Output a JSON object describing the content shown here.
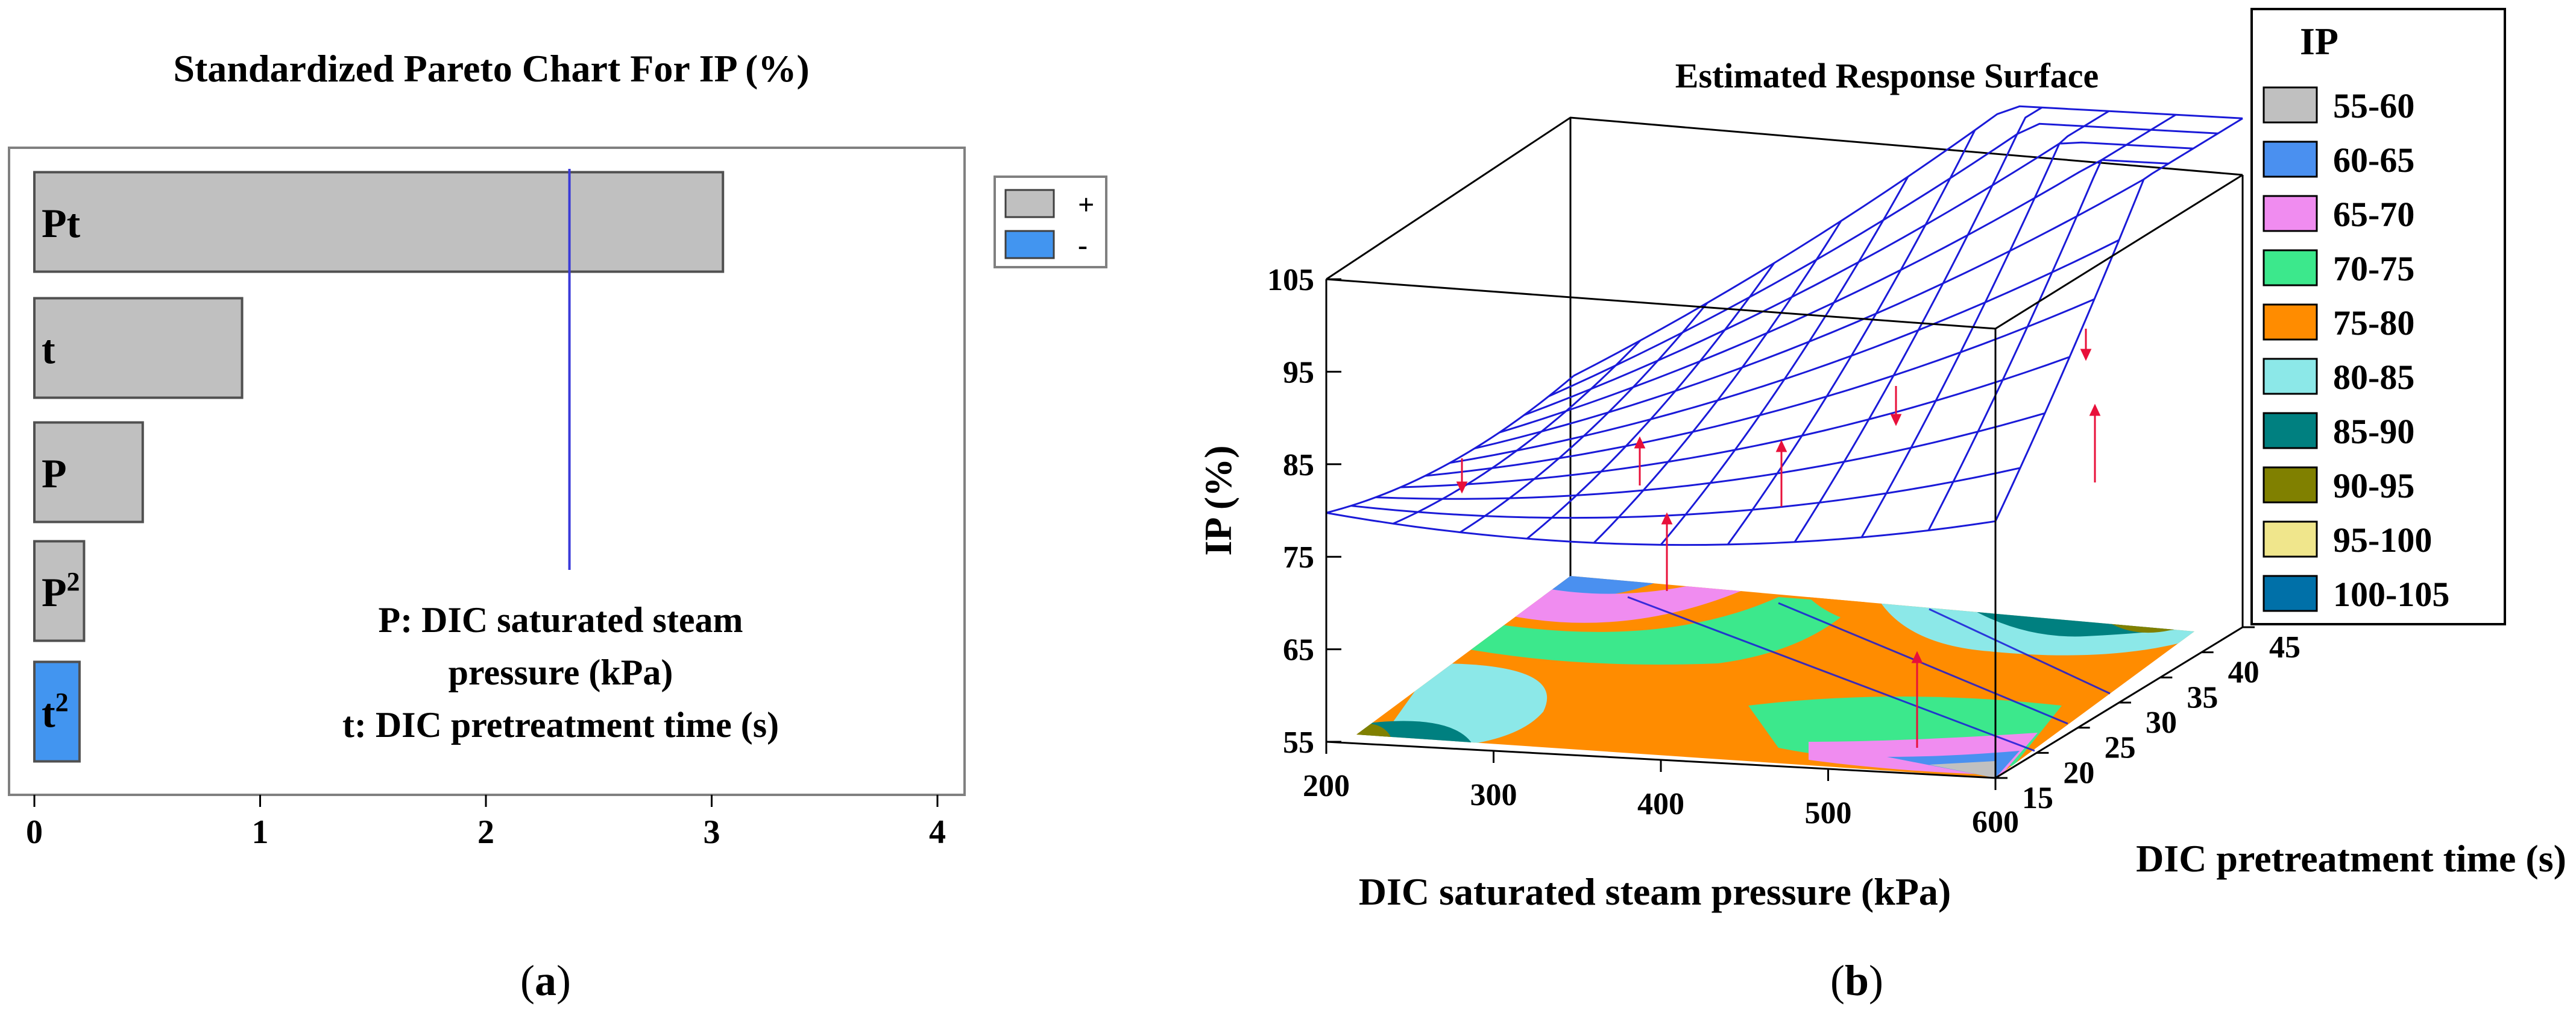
{
  "chart_data": [
    {
      "type": "bar",
      "orientation": "horizontal",
      "title": "Standardized Pareto Chart For IP (%)",
      "categories": [
        "Pt",
        "t",
        "P",
        "P²",
        "t²"
      ],
      "cat_base": [
        "Pt",
        "t",
        "P",
        "P",
        "t"
      ],
      "cat_sup": [
        "",
        "",
        "",
        "2",
        "2"
      ],
      "values": [
        3.05,
        0.92,
        0.48,
        0.22,
        0.2
      ],
      "signs": [
        "+",
        "+",
        "+",
        "+",
        "-"
      ],
      "xlim": [
        0,
        4.2
      ],
      "xticks": [
        "0",
        "1",
        "2",
        "3",
        "4"
      ],
      "significance_line": 2.37,
      "legend": [
        {
          "label": "+",
          "color": "#c0c0c0"
        },
        {
          "label": "-",
          "color": "#4295f0"
        }
      ],
      "annotation": [
        "P: DIC saturated steam",
        "pressure (kPa)",
        "t: DIC pretreatment time (s)"
      ],
      "panel_label": "(a)",
      "panel_letter": "a"
    },
    {
      "type": "surface",
      "title": "Estimated Response Surface",
      "xlabel": "DIC saturated steam pressure (kPa)",
      "ylabel": "DIC pretreatment time (s)",
      "zlabel": "IP (%)",
      "xticks": [
        "200",
        "300",
        "400",
        "500",
        "600"
      ],
      "yticks": [
        "15",
        "20",
        "25",
        "30",
        "35",
        "40",
        "45"
      ],
      "zticks": [
        "55",
        "65",
        "75",
        "85",
        "95",
        "105"
      ],
      "xlim": [
        200,
        600
      ],
      "ylim": [
        15,
        45
      ],
      "zlim": [
        55,
        105
      ],
      "legend_title": "IP",
      "legend": [
        {
          "label": "55-60",
          "color": "#c0c0c0"
        },
        {
          "label": "60-65",
          "color": "#4a90f0"
        },
        {
          "label": "65-70",
          "color": "#f08cf0"
        },
        {
          "label": "70-75",
          "color": "#3ce88c"
        },
        {
          "label": "75-80",
          "color": "#ff8c00"
        },
        {
          "label": "80-85",
          "color": "#8ce8e8"
        },
        {
          "label": "85-90",
          "color": "#008080"
        },
        {
          "label": "90-95",
          "color": "#808000"
        },
        {
          "label": "95-100",
          "color": "#f0e68c"
        },
        {
          "label": "100-105",
          "color": "#0070a8"
        }
      ],
      "panel_label": "(b)",
      "panel_letter": "b"
    }
  ]
}
